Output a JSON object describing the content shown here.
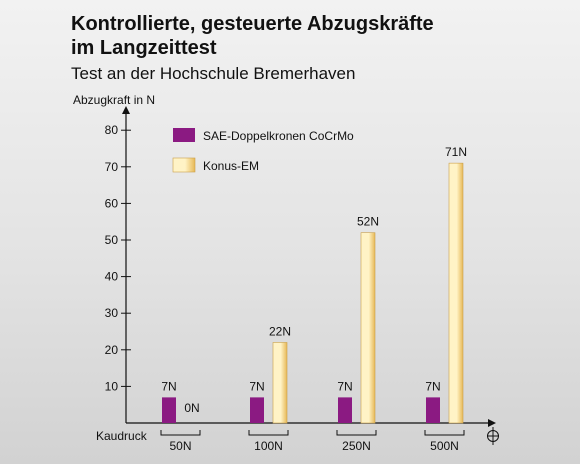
{
  "title_line1": "Kontrollierte, gesteuerte Abzugskräfte",
  "title_line2": "im Langzeittest",
  "subtitle": "Test an der Hochschule Bremerhaven",
  "colors": {
    "sae": "#8b1a82",
    "konus_light": "#fff3c6",
    "konus_dark": "#e7b856",
    "axis": "#111111"
  },
  "chart_data": {
    "type": "bar",
    "title": "Kontrollierte, gesteuerte Abzugskräfte im Langzeittest",
    "subtitle": "Test an der Hochschule Bremerhaven",
    "ylabel": "Abzugkraft in N",
    "xlabel": "Kaudruck",
    "categories": [
      "50N",
      "100N",
      "250N",
      "500N"
    ],
    "ylim": [
      0,
      85
    ],
    "yticks": [
      10,
      20,
      30,
      40,
      50,
      60,
      70,
      80
    ],
    "series": [
      {
        "name": "SAE-Doppelkronen CoCrMo",
        "values": [
          7,
          7,
          7,
          7
        ],
        "labels": [
          "7N",
          "7N",
          "7N",
          "7N"
        ]
      },
      {
        "name": "Konus-EM",
        "values": [
          0,
          22,
          52,
          71
        ],
        "labels": [
          "0N",
          "22N",
          "52N",
          "71N"
        ]
      }
    ],
    "legend_position": "top-left",
    "grid": false
  }
}
